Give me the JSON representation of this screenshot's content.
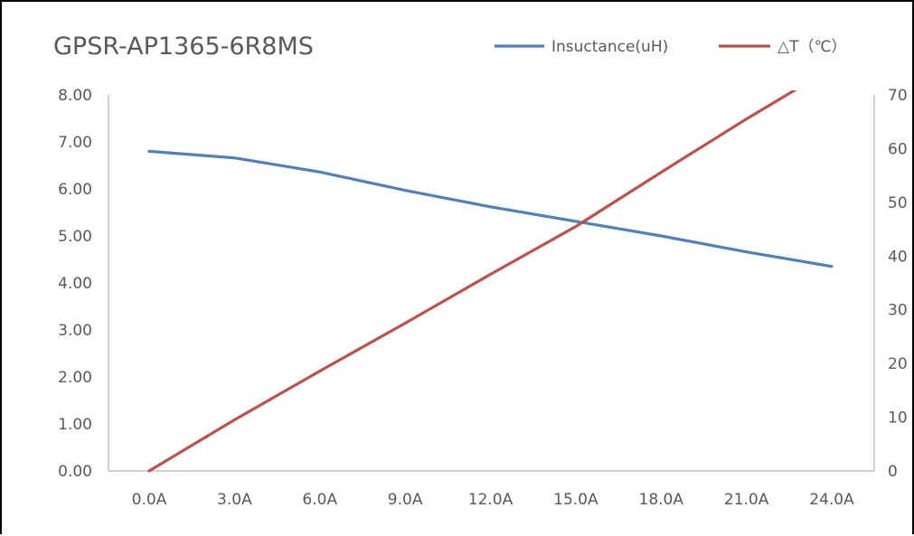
{
  "chart_data": {
    "type": "line",
    "title": "GPSR-AP1365-6R8MS",
    "categories": [
      "0.0A",
      "3.0A",
      "6.0A",
      "9.0A",
      "12.0A",
      "15.0A",
      "18.0A",
      "21.0A",
      "24.0A"
    ],
    "series": [
      {
        "name": "Insuctance(uH)",
        "axis": "left",
        "color": "#4f81bd",
        "values": [
          6.8,
          6.66,
          6.36,
          5.97,
          5.62,
          5.31,
          5.0,
          4.66,
          4.35
        ]
      },
      {
        "name": "△T（℃）",
        "axis": "right",
        "color": "#c0504d",
        "values": [
          0.0,
          9.5,
          18.6,
          27.5,
          36.6,
          45.5,
          55.6,
          65.5,
          75.0
        ]
      }
    ],
    "y_left": {
      "ylim": [
        0,
        8
      ],
      "ticks": [
        "0.00",
        "1.00",
        "2.00",
        "3.00",
        "4.00",
        "5.00",
        "6.00",
        "7.00",
        "8.00"
      ]
    },
    "y_right": {
      "ylim": [
        0,
        70
      ],
      "ticks": [
        "0",
        "10",
        "20",
        "30",
        "40",
        "50",
        "60",
        "70"
      ]
    },
    "xlabel": "",
    "ylabel": "",
    "grid": false,
    "legend_position": "top-right"
  }
}
